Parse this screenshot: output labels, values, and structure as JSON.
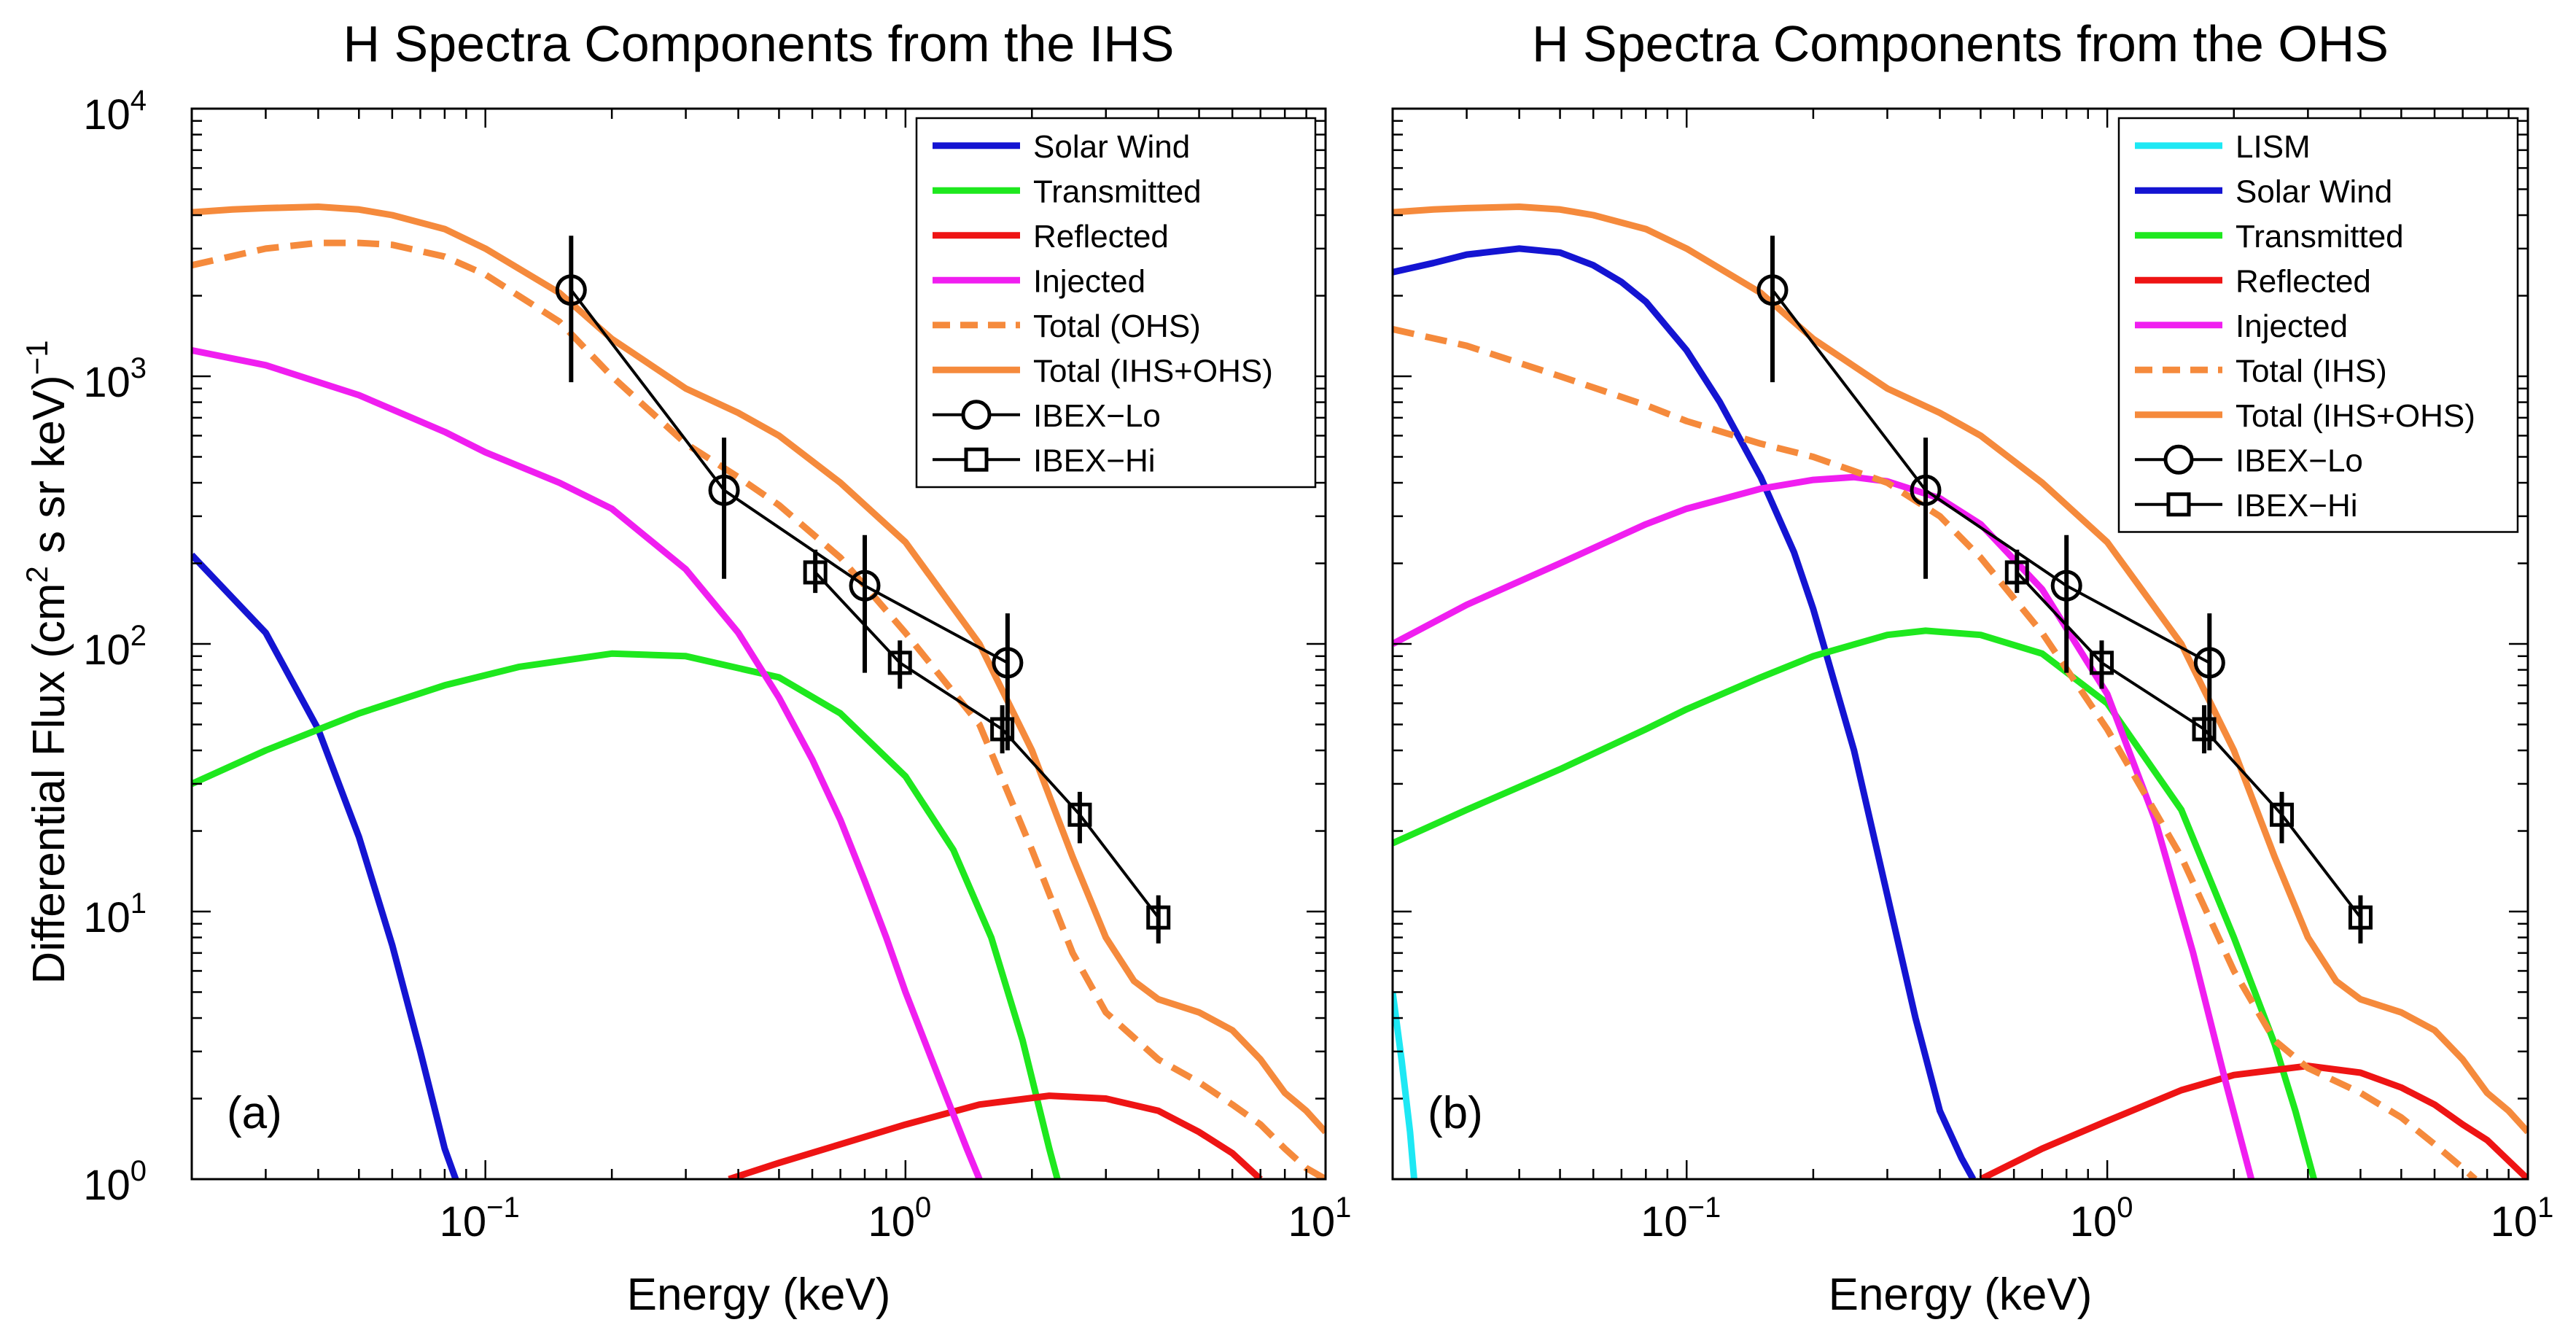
{
  "ylabel": "Differential Flux (cm",
  "ylabel_sup2": "2",
  "ylabel_mid": " s sr keV)",
  "ylabel_supm1": "−1",
  "colors": {
    "lism": "#1ee8f4",
    "solar_wind": "#1414d2",
    "transmitted": "#1ee81e",
    "reflected": "#ee1414",
    "injected": "#f01ef0",
    "total": "#f58a3c",
    "ibex": "#000000"
  },
  "chart_data": [
    {
      "type": "line",
      "title": "H Spectra Components from the IHS",
      "xlabel": "Energy (keV)",
      "ylabel": "Differential Flux (cm^2 s sr keV)^-1",
      "xscale": "log",
      "yscale": "log",
      "xlim": [
        0.02,
        10
      ],
      "ylim": [
        1,
        10000
      ],
      "x_ticks": [
        0.1,
        1,
        10
      ],
      "x_tick_labels": [
        {
          "base": "10",
          "exp": "−1"
        },
        {
          "base": "10",
          "exp": "0"
        },
        {
          "base": "10",
          "exp": "1"
        }
      ],
      "y_ticks": [
        1,
        10,
        100,
        1000,
        10000
      ],
      "y_tick_labels": [
        {
          "base": "10",
          "exp": "0"
        },
        {
          "base": "10",
          "exp": "1"
        },
        {
          "base": "10",
          "exp": "2"
        },
        {
          "base": "10",
          "exp": "3"
        },
        {
          "base": "10",
          "exp": "4"
        }
      ],
      "panel_label": "(a)",
      "legend_position": "top-right",
      "series": [
        {
          "name": "Solar Wind",
          "style": "solid",
          "color_key": "solar_wind",
          "x": [
            0.02,
            0.03,
            0.04,
            0.05,
            0.06,
            0.07,
            0.08,
            0.085
          ],
          "y": [
            215,
            110,
            48,
            19,
            7.5,
            3,
            1.3,
            1.0
          ]
        },
        {
          "name": "Transmitted",
          "style": "solid",
          "color_key": "transmitted",
          "x": [
            0.02,
            0.03,
            0.05,
            0.08,
            0.12,
            0.2,
            0.3,
            0.5,
            0.7,
            1.0,
            1.3,
            1.6,
            1.9,
            2.2,
            2.3
          ],
          "y": [
            30,
            40,
            55,
            70,
            82,
            92,
            90,
            75,
            55,
            32,
            17,
            8,
            3.3,
            1.3,
            1.0
          ]
        },
        {
          "name": "Reflected",
          "style": "solid",
          "color_key": "reflected",
          "x": [
            0.38,
            0.5,
            0.7,
            1.0,
            1.5,
            2.2,
            3.0,
            4.0,
            5.0,
            6.0,
            7.0
          ],
          "y": [
            1.0,
            1.15,
            1.35,
            1.6,
            1.9,
            2.05,
            2.0,
            1.8,
            1.5,
            1.25,
            1.0
          ]
        },
        {
          "name": "Injected",
          "style": "solid",
          "color_key": "injected",
          "x": [
            0.02,
            0.03,
            0.05,
            0.08,
            0.1,
            0.15,
            0.2,
            0.3,
            0.4,
            0.5,
            0.6,
            0.7,
            0.8,
            0.9,
            1.0,
            1.2,
            1.4,
            1.5
          ],
          "y": [
            1250,
            1100,
            850,
            620,
            520,
            400,
            320,
            190,
            110,
            63,
            37,
            22,
            13,
            8,
            5,
            2.4,
            1.3,
            1.0
          ]
        },
        {
          "name": "Total (OHS)",
          "style": "dashed",
          "color_key": "total",
          "x": [
            0.02,
            0.03,
            0.04,
            0.05,
            0.06,
            0.08,
            0.1,
            0.15,
            0.2,
            0.3,
            0.4,
            0.5,
            0.7,
            1.0,
            1.5,
            2.0,
            2.5,
            3.0,
            4.0,
            5.0,
            6.0,
            7.0,
            8.0,
            9.0,
            10.0
          ],
          "y": [
            2600,
            3000,
            3150,
            3150,
            3100,
            2800,
            2400,
            1600,
            1000,
            560,
            420,
            330,
            210,
            110,
            50,
            17,
            7,
            4.2,
            2.8,
            2.3,
            1.9,
            1.6,
            1.3,
            1.1,
            1.0
          ]
        },
        {
          "name": "Total (IHS+OHS)",
          "style": "solid",
          "color_key": "total",
          "x": [
            0.02,
            0.025,
            0.03,
            0.04,
            0.05,
            0.06,
            0.08,
            0.1,
            0.15,
            0.2,
            0.3,
            0.4,
            0.5,
            0.7,
            1.0,
            1.5,
            2.0,
            2.5,
            3.0,
            3.5,
            4.0,
            5.0,
            6.0,
            7.0,
            8.0,
            9.0,
            10.0
          ],
          "y": [
            4100,
            4200,
            4250,
            4300,
            4200,
            4000,
            3550,
            3000,
            2050,
            1380,
            900,
            730,
            600,
            400,
            240,
            100,
            40,
            16,
            8,
            5.5,
            4.7,
            4.2,
            3.6,
            2.8,
            2.1,
            1.8,
            1.5
          ]
        }
      ],
      "ibex_lo": {
        "name": "IBEX−Lo",
        "x": [
          0.16,
          0.37,
          0.8,
          1.75
        ],
        "y": [
          2100,
          375,
          165,
          85
        ],
        "y_low": [
          950,
          175,
          78,
          40
        ],
        "y_high": [
          3350,
          590,
          255,
          130
        ]
      },
      "ibex_hi": {
        "name": "IBEX−Hi",
        "x": [
          0.61,
          0.97,
          1.7,
          2.6,
          4.0
        ],
        "y": [
          185,
          85,
          48,
          23,
          9.5
        ],
        "y_low": [
          155,
          68,
          39,
          18,
          7.6
        ],
        "y_high": [
          225,
          103,
          59,
          28,
          11.5
        ]
      },
      "legend_entries": [
        {
          "label": "Solar Wind",
          "kind": "line",
          "color_key": "solar_wind",
          "style": "solid"
        },
        {
          "label": "Transmitted",
          "kind": "line",
          "color_key": "transmitted",
          "style": "solid"
        },
        {
          "label": "Reflected",
          "kind": "line",
          "color_key": "reflected",
          "style": "solid"
        },
        {
          "label": "Injected",
          "kind": "line",
          "color_key": "injected",
          "style": "solid"
        },
        {
          "label": "Total (OHS)",
          "kind": "line",
          "color_key": "total",
          "style": "dashed"
        },
        {
          "label": "Total (IHS+OHS)",
          "kind": "line",
          "color_key": "total",
          "style": "solid"
        },
        {
          "label": "IBEX−Lo",
          "kind": "marker",
          "marker": "circle"
        },
        {
          "label": "IBEX−Hi",
          "kind": "marker",
          "marker": "square"
        }
      ]
    },
    {
      "type": "line",
      "title": "H Spectra Components from the OHS",
      "xlabel": "Energy (keV)",
      "ylabel": "",
      "xscale": "log",
      "yscale": "log",
      "xlim": [
        0.02,
        10
      ],
      "ylim": [
        1,
        10000
      ],
      "x_ticks": [
        0.1,
        1,
        10
      ],
      "x_tick_labels": [
        {
          "base": "10",
          "exp": "−1"
        },
        {
          "base": "10",
          "exp": "0"
        },
        {
          "base": "10",
          "exp": "1"
        }
      ],
      "y_ticks": [
        1,
        10,
        100,
        1000,
        10000
      ],
      "y_tick_labels": [],
      "panel_label": "(b)",
      "legend_position": "top-right",
      "series": [
        {
          "name": "LISM",
          "style": "solid",
          "color_key": "lism",
          "x": [
            0.02,
            0.021,
            0.022,
            0.0225
          ],
          "y": [
            5,
            2.8,
            1.5,
            1.0
          ]
        },
        {
          "name": "Solar Wind",
          "style": "solid",
          "color_key": "solar_wind",
          "x": [
            0.02,
            0.025,
            0.03,
            0.04,
            0.05,
            0.06,
            0.07,
            0.08,
            0.1,
            0.12,
            0.15,
            0.18,
            0.2,
            0.25,
            0.3,
            0.35,
            0.4,
            0.45,
            0.48
          ],
          "y": [
            2450,
            2650,
            2850,
            3000,
            2900,
            2600,
            2250,
            1900,
            1250,
            800,
            420,
            220,
            135,
            40,
            11.5,
            4,
            1.8,
            1.2,
            1.0
          ]
        },
        {
          "name": "Transmitted",
          "style": "solid",
          "color_key": "transmitted",
          "x": [
            0.02,
            0.03,
            0.05,
            0.08,
            0.1,
            0.15,
            0.2,
            0.3,
            0.37,
            0.5,
            0.7,
            1.0,
            1.5,
            2.0,
            2.5,
            2.8,
            3.1
          ],
          "y": [
            18,
            24,
            34,
            48,
            57,
            75,
            90,
            108,
            112,
            108,
            92,
            60,
            24,
            8,
            3.2,
            1.8,
            1.0
          ]
        },
        {
          "name": "Reflected",
          "style": "solid",
          "color_key": "reflected",
          "x": [
            0.5,
            0.7,
            1.0,
            1.5,
            2.0,
            3.0,
            4.0,
            5.0,
            6.0,
            7.0,
            8.0,
            10.0
          ],
          "y": [
            1.0,
            1.3,
            1.65,
            2.15,
            2.45,
            2.65,
            2.5,
            2.2,
            1.9,
            1.6,
            1.4,
            1.0
          ]
        },
        {
          "name": "Injected",
          "style": "solid",
          "color_key": "injected",
          "x": [
            0.02,
            0.03,
            0.05,
            0.08,
            0.1,
            0.15,
            0.2,
            0.25,
            0.3,
            0.4,
            0.5,
            0.7,
            1.0,
            1.3,
            1.6,
            1.9,
            2.2
          ],
          "y": [
            100,
            140,
            200,
            280,
            320,
            380,
            410,
            420,
            405,
            350,
            280,
            160,
            65,
            22,
            7,
            2.4,
            1.0
          ]
        },
        {
          "name": "Total (IHS)",
          "style": "dashed",
          "color_key": "total",
          "x": [
            0.02,
            0.03,
            0.05,
            0.08,
            0.1,
            0.15,
            0.2,
            0.3,
            0.4,
            0.5,
            0.7,
            1.0,
            1.5,
            2.0,
            2.5,
            3.0,
            4.0,
            5.0,
            6.0,
            7.0,
            7.5
          ],
          "y": [
            1500,
            1300,
            1000,
            780,
            680,
            560,
            500,
            400,
            300,
            210,
            110,
            48,
            16,
            6,
            3.3,
            2.6,
            2.1,
            1.7,
            1.35,
            1.1,
            1.0
          ]
        },
        {
          "name": "Total (IHS+OHS)",
          "style": "solid",
          "color_key": "total",
          "x": [
            0.02,
            0.025,
            0.03,
            0.04,
            0.05,
            0.06,
            0.08,
            0.1,
            0.15,
            0.2,
            0.3,
            0.4,
            0.5,
            0.7,
            1.0,
            1.5,
            2.0,
            2.5,
            3.0,
            3.5,
            4.0,
            5.0,
            6.0,
            7.0,
            8.0,
            9.0,
            10.0
          ],
          "y": [
            4100,
            4200,
            4250,
            4300,
            4200,
            4000,
            3550,
            3000,
            2050,
            1380,
            900,
            730,
            600,
            400,
            240,
            100,
            40,
            16,
            8,
            5.5,
            4.7,
            4.2,
            3.6,
            2.8,
            2.1,
            1.8,
            1.5
          ]
        }
      ],
      "ibex_lo": {
        "name": "IBEX−Lo",
        "x": [
          0.16,
          0.37,
          0.8,
          1.75
        ],
        "y": [
          2100,
          375,
          165,
          85
        ],
        "y_low": [
          950,
          175,
          78,
          40
        ],
        "y_high": [
          3350,
          590,
          255,
          130
        ]
      },
      "ibex_hi": {
        "name": "IBEX−Hi",
        "x": [
          0.61,
          0.97,
          1.7,
          2.6,
          4.0
        ],
        "y": [
          185,
          85,
          48,
          23,
          9.5
        ],
        "y_low": [
          155,
          68,
          39,
          18,
          7.6
        ],
        "y_high": [
          225,
          103,
          59,
          28,
          11.5
        ]
      },
      "legend_entries": [
        {
          "label": "LISM",
          "kind": "line",
          "color_key": "lism",
          "style": "solid"
        },
        {
          "label": "Solar Wind",
          "kind": "line",
          "color_key": "solar_wind",
          "style": "solid"
        },
        {
          "label": "Transmitted",
          "kind": "line",
          "color_key": "transmitted",
          "style": "solid"
        },
        {
          "label": "Reflected",
          "kind": "line",
          "color_key": "reflected",
          "style": "solid"
        },
        {
          "label": "Injected",
          "kind": "line",
          "color_key": "injected",
          "style": "solid"
        },
        {
          "label": "Total (IHS)",
          "kind": "line",
          "color_key": "total",
          "style": "dashed"
        },
        {
          "label": "Total (IHS+OHS)",
          "kind": "line",
          "color_key": "total",
          "style": "solid"
        },
        {
          "label": "IBEX−Lo",
          "kind": "marker",
          "marker": "circle"
        },
        {
          "label": "IBEX−Hi",
          "kind": "marker",
          "marker": "square"
        }
      ]
    }
  ]
}
